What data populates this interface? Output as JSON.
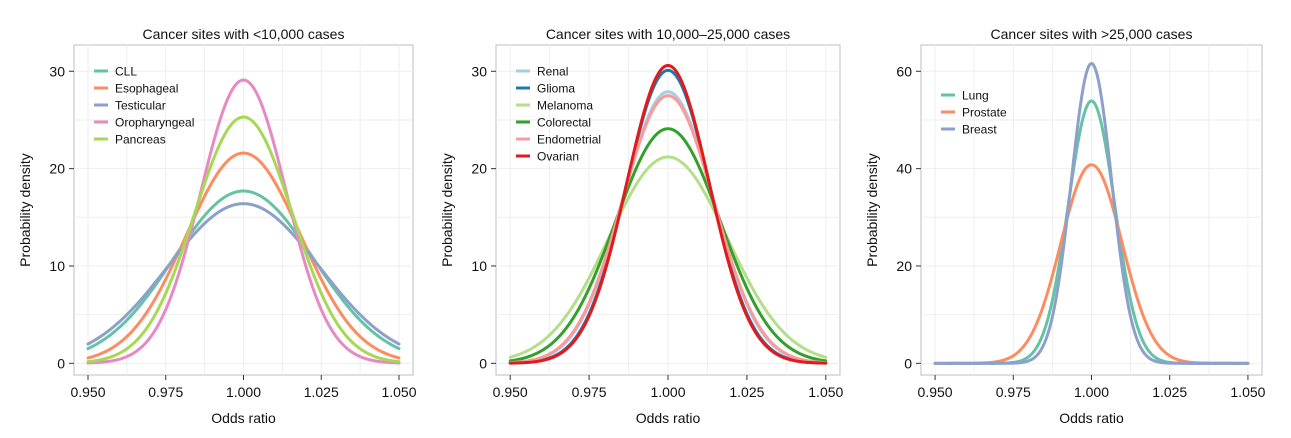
{
  "chart_data": [
    {
      "type": "line",
      "title": "Cancer sites with <10,000 cases",
      "xlabel": "Odds ratio",
      "ylabel": "Probability density",
      "xlim": [
        0.95,
        1.05
      ],
      "ylim": [
        0,
        30
      ],
      "xticks": [
        "0.950",
        "0.975",
        "1.000",
        "1.025",
        "1.050"
      ],
      "yticks": [
        "0",
        "10",
        "20",
        "30"
      ],
      "grid": true,
      "legend": "top-left",
      "series": [
        {
          "name": "CLL",
          "color": "#66c2a5",
          "peak": 17.7,
          "mean": 1.0
        },
        {
          "name": "Esophageal",
          "color": "#fc8d62",
          "peak": 21.6,
          "mean": 1.0
        },
        {
          "name": "Testicular",
          "color": "#8da0cb",
          "peak": 16.4,
          "mean": 1.0
        },
        {
          "name": "Oropharyngeal",
          "color": "#e78ac3",
          "peak": 29.1,
          "mean": 1.0
        },
        {
          "name": "Pancreas",
          "color": "#a6d854",
          "peak": 25.3,
          "mean": 1.0
        }
      ]
    },
    {
      "type": "line",
      "title": "Cancer sites with 10,000–25,000 cases",
      "xlabel": "Odds ratio",
      "ylabel": "Probability density",
      "xlim": [
        0.95,
        1.05
      ],
      "ylim": [
        0,
        30
      ],
      "xticks": [
        "0.950",
        "0.975",
        "1.000",
        "1.025",
        "1.050"
      ],
      "yticks": [
        "0",
        "10",
        "20",
        "30"
      ],
      "grid": true,
      "legend": "top-left",
      "series": [
        {
          "name": "Renal",
          "color": "#a6cee3",
          "peak": 27.9,
          "mean": 1.0
        },
        {
          "name": "Glioma",
          "color": "#1f78b4",
          "peak": 30.1,
          "mean": 1.0
        },
        {
          "name": "Melanoma",
          "color": "#b2df8a",
          "peak": 21.2,
          "mean": 1.0
        },
        {
          "name": "Colorectal",
          "color": "#33a02c",
          "peak": 24.1,
          "mean": 1.0
        },
        {
          "name": "Endometrial",
          "color": "#fb9a99",
          "peak": 27.5,
          "mean": 1.0
        },
        {
          "name": "Ovarian",
          "color": "#e31a1c",
          "peak": 30.6,
          "mean": 1.0
        }
      ]
    },
    {
      "type": "line",
      "title": "Cancer sites with >25,000 cases",
      "xlabel": "Odds ratio",
      "ylabel": "Probability density",
      "xlim": [
        0.95,
        1.05
      ],
      "ylim": [
        0,
        60
      ],
      "xticks": [
        "0.950",
        "0.975",
        "1.000",
        "1.025",
        "1.050"
      ],
      "yticks": [
        "0",
        "20",
        "40",
        "60"
      ],
      "grid": true,
      "legend": "top-left",
      "series": [
        {
          "name": "Lung",
          "color": "#66c2a5",
          "peak": 53.9,
          "mean": 1.0
        },
        {
          "name": "Prostate",
          "color": "#fc8d62",
          "peak": 40.8,
          "mean": 1.0
        },
        {
          "name": "Breast",
          "color": "#8da0cb",
          "peak": 61.6,
          "mean": 1.0
        }
      ]
    }
  ]
}
